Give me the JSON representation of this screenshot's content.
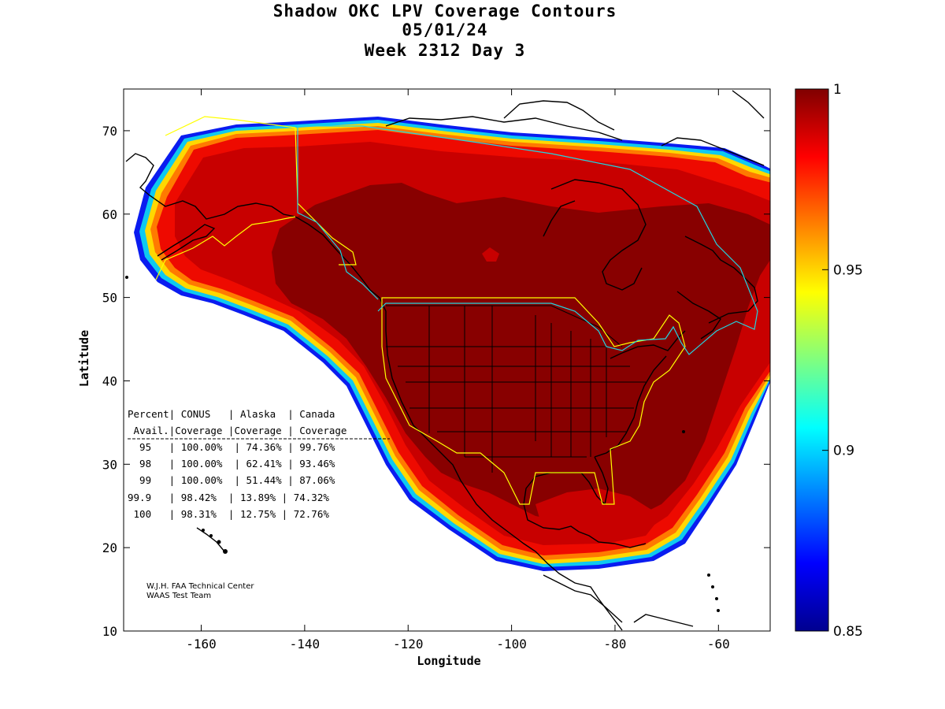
{
  "title": {
    "line1": "Shadow OKC LPV Coverage Contours",
    "line2": "05/01/24",
    "line3": "Week 2312 Day 3"
  },
  "axes": {
    "xlabel": "Longitude",
    "ylabel": "Latitude",
    "xrange": [
      -175,
      -50
    ],
    "yrange": [
      10,
      75
    ],
    "xticks": [
      -160,
      -140,
      -120,
      -100,
      -80,
      -60
    ],
    "yticks": [
      10,
      20,
      30,
      40,
      50,
      60,
      70
    ]
  },
  "colorbar": {
    "range": [
      0.85,
      1
    ],
    "ticks": [
      {
        "value": 1,
        "label": "1"
      },
      {
        "value": 0.95,
        "label": "0.95"
      },
      {
        "value": 0.9,
        "label": "0.9"
      },
      {
        "value": 0.85,
        "label": "0.85"
      }
    ],
    "colormap": "jet",
    "colors": [
      "#00008f",
      "#0000ff",
      "#00ffff",
      "#ffff00",
      "#ff0000",
      "#800000"
    ]
  },
  "table": {
    "header1": "Percent| CONUS   | Alaska  | Canada",
    "header2": " Avail.|Coverage |Coverage | Coverage",
    "rows": [
      "  95   | 100.00%  | 74.36% | 99.76%",
      "  98   | 100.00%  | 62.41% | 93.46%",
      "  99   | 100.00%  | 51.44% | 87.06%",
      "99.9   | 98.42%  | 13.89% | 74.32%",
      " 100   | 98.31%  | 12.75% | 72.76%"
    ]
  },
  "credit": {
    "line1": "W.J.H. FAA Technical Center",
    "line2": "WAAS Test Team"
  }
}
